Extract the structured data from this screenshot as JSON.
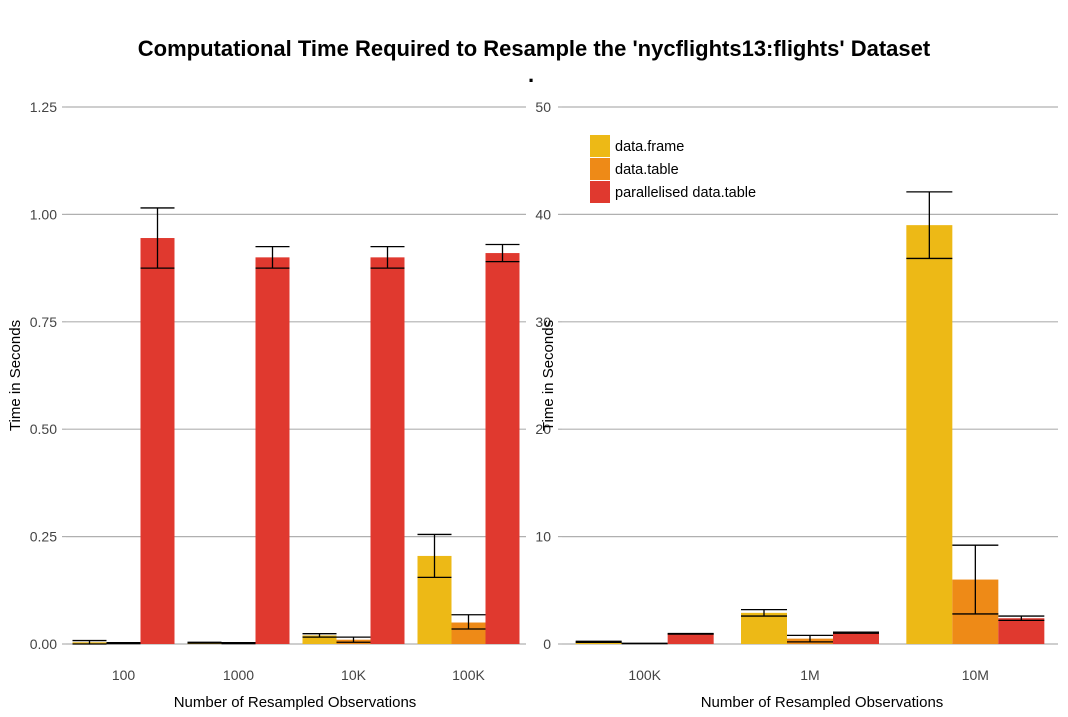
{
  "page_title": "Computational Time Required to Resample the 'nycflights13:flights' Dataset",
  "title_dot": ".",
  "colors": {
    "data.frame": "#EDB916",
    "data.table": "#EE8A17",
    "parallelised data.table": "#E0392F",
    "grid": "#B0B0B0",
    "errorbar": "#000000"
  },
  "legend": {
    "placement": "top-left of right panel",
    "entries": [
      "data.frame",
      "data.table",
      "parallelised data.table"
    ]
  },
  "chart_data": [
    {
      "type": "bar",
      "xlabel": "Number of Resampled Observations",
      "ylabel": "Time in Seconds",
      "ylim": [
        0,
        1.25
      ],
      "yticks": [
        0,
        0.25,
        0.5,
        0.75,
        1.0,
        1.25
      ],
      "ytick_labels": [
        "0.00",
        "0.25",
        "0.50",
        "0.75",
        "1.00",
        "1.25"
      ],
      "categories": [
        "100",
        "1000",
        "10K",
        "100K"
      ],
      "grid": "horizontal",
      "series": [
        {
          "name": "data.frame",
          "values": [
            0.004,
            0.003,
            0.02,
            0.205
          ],
          "err_low": [
            0.0,
            0.002,
            0.016,
            0.155
          ],
          "err_high": [
            0.008,
            0.004,
            0.024,
            0.255
          ]
        },
        {
          "name": "data.table",
          "values": [
            0.002,
            0.002,
            0.01,
            0.05
          ],
          "err_low": [
            0.001,
            0.001,
            0.004,
            0.035
          ],
          "err_high": [
            0.003,
            0.003,
            0.016,
            0.068
          ]
        },
        {
          "name": "parallelised data.table",
          "values": [
            0.945,
            0.9,
            0.9,
            0.91
          ],
          "err_low": [
            0.875,
            0.875,
            0.875,
            0.89
          ],
          "err_high": [
            1.015,
            0.925,
            0.925,
            0.93
          ]
        }
      ]
    },
    {
      "type": "bar",
      "xlabel": "Number of Resampled Observations",
      "ylabel": "Time in Seconds",
      "ylim": [
        0,
        50
      ],
      "yticks": [
        0,
        10,
        20,
        30,
        40,
        50
      ],
      "ytick_labels": [
        "0",
        "10",
        "20",
        "30",
        "40",
        "50"
      ],
      "categories": [
        "100K",
        "1M",
        "10M"
      ],
      "grid": "horizontal",
      "series": [
        {
          "name": "data.frame",
          "values": [
            0.2,
            2.9,
            39.0
          ],
          "err_low": [
            0.15,
            2.6,
            35.9
          ],
          "err_high": [
            0.25,
            3.2,
            42.1
          ]
        },
        {
          "name": "data.table",
          "values": [
            0.05,
            0.5,
            6.0
          ],
          "err_low": [
            0.035,
            0.2,
            2.8
          ],
          "err_high": [
            0.065,
            0.8,
            9.2
          ]
        },
        {
          "name": "parallelised data.table",
          "values": [
            0.95,
            1.05,
            2.4
          ],
          "err_low": [
            0.92,
            1.0,
            2.2
          ],
          "err_high": [
            0.98,
            1.1,
            2.6
          ]
        }
      ]
    }
  ]
}
